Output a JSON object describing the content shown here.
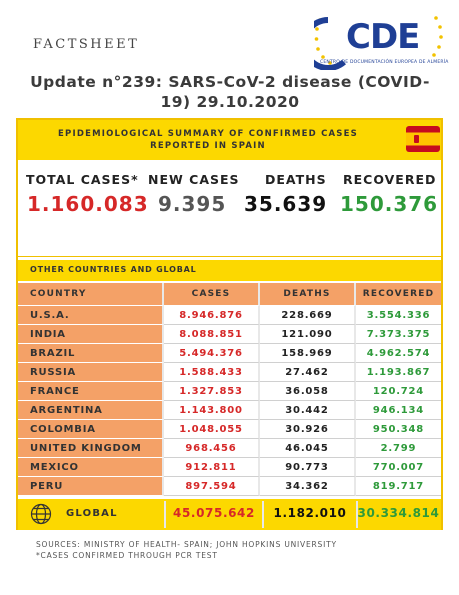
{
  "header": {
    "label": "FACTSHEET",
    "logo_text": "CDE",
    "logo_subtitle": "CENTRO DE DOCUMENTACIÓN EUROPEA DE ALMERÍA"
  },
  "title": "Update n°239: SARS-CoV-2 disease (COVID-19) 29.10.2020",
  "summary": {
    "heading": "EPIDEMIOLOGICAL SUMMARY OF CONFIRMED CASES REPORTED IN SPAIN",
    "labels": {
      "total": "TOTAL CASES*",
      "new": "NEW CASES",
      "deaths": "DEATHS",
      "recovered": "RECOVERED"
    },
    "values": {
      "total": "1.160.083",
      "new": "9.395",
      "deaths": "35.639",
      "recovered": "150.376"
    }
  },
  "other": {
    "heading": "OTHER COUNTRIES AND GLOBAL",
    "columns": [
      "COUNTRY",
      "CASES",
      "DEATHS",
      "RECOVERED"
    ],
    "rows": [
      {
        "country": "U.S.A.",
        "cases": "8.946.876",
        "deaths": "228.669",
        "recovered": "3.554.336"
      },
      {
        "country": "INDIA",
        "cases": "8.088.851",
        "deaths": "121.090",
        "recovered": "7.373.375"
      },
      {
        "country": "BRAZIL",
        "cases": "5.494.376",
        "deaths": "158.969",
        "recovered": "4.962.574"
      },
      {
        "country": "RUSSIA",
        "cases": "1.588.433",
        "deaths": "27.462",
        "recovered": "1.193.867"
      },
      {
        "country": "FRANCE",
        "cases": "1.327.853",
        "deaths": "36.058",
        "recovered": "120.724"
      },
      {
        "country": "ARGENTINA",
        "cases": "1.143.800",
        "deaths": "30.442",
        "recovered": "946.134"
      },
      {
        "country": "COLOMBIA",
        "cases": "1.048.055",
        "deaths": "30.926",
        "recovered": "950.348"
      },
      {
        "country": "UNITED KINGDOM",
        "cases": "968.456",
        "deaths": "46.045",
        "recovered": "2.799"
      },
      {
        "country": "MEXICO",
        "cases": "912.811",
        "deaths": "90.773",
        "recovered": "770.007"
      },
      {
        "country": "PERU",
        "cases": "897.594",
        "deaths": "34.362",
        "recovered": "819.717"
      }
    ],
    "global": {
      "label": "GLOBAL",
      "cases": "45.075.642",
      "deaths": "1.182.010",
      "recovered": "30.334.814"
    }
  },
  "footer": {
    "sources": "SOURCES: MINISTRY OF HEALTH- SPAIN; JOHN HOPKINS UNIVERSITY",
    "note": "*CASES CONFIRMED THROUGH PCR TEST"
  },
  "colors": {
    "accent_yellow": "#fcd800",
    "orange": "#f4a167",
    "red": "#d62828",
    "green": "#2e9a3a",
    "logo_blue": "#1f3f95"
  },
  "icons": {
    "flag": "spain-flag-icon",
    "globe": "globe-icon",
    "logo": "eu-stars-icon"
  }
}
